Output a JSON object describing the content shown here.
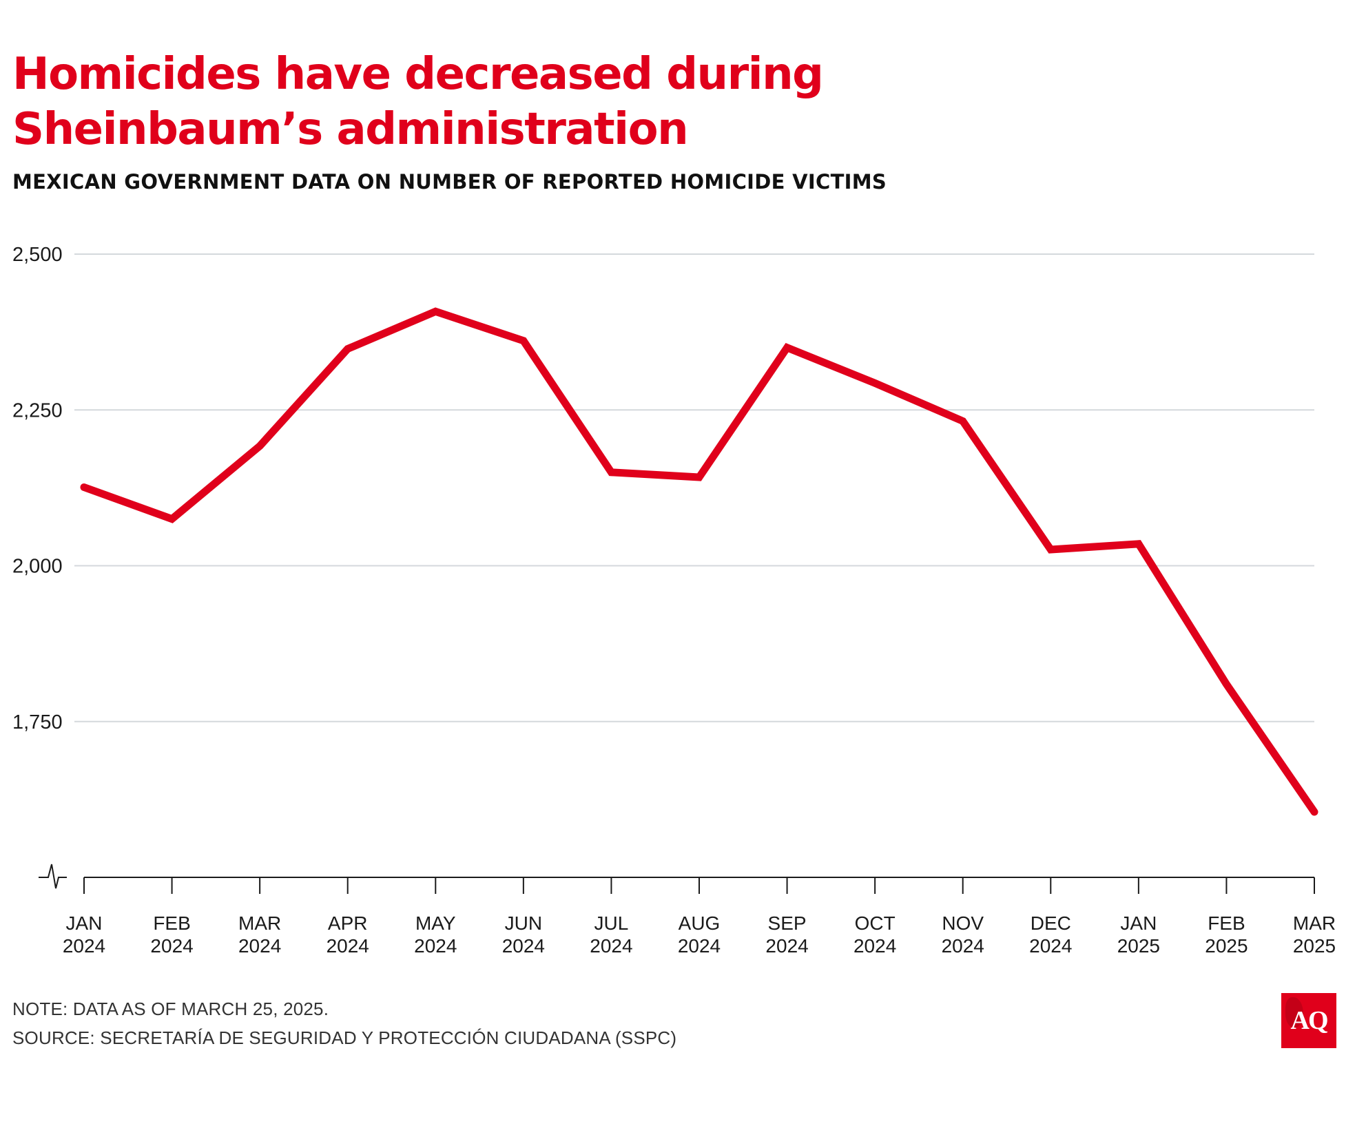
{
  "header": {
    "title_line1": "Homicides have decreased during",
    "title_line2": "Sheinbaum’s administration",
    "subtitle": "MEXICAN GOVERNMENT DATA ON NUMBER OF REPORTED HOMICIDE VICTIMS"
  },
  "footer": {
    "note": "NOTE: DATA AS OF MARCH 25, 2025.",
    "source": "SOURCE: SECRETARÍA DE SEGURIDAD Y PROTECCIÓN CIUDADANA (SSPC)"
  },
  "logo": {
    "text": "AQ"
  },
  "colors": {
    "title": "#e0001b",
    "line": "#e0001b",
    "grid": "#d4d8dc",
    "axis": "#1a1a1a",
    "logo_bg": "#e0001b"
  },
  "chart_data": {
    "type": "line",
    "title": "Homicides have decreased during Sheinbaum’s administration",
    "subtitle": "MEXICAN GOVERNMENT DATA ON NUMBER OF REPORTED HOMICIDE VICTIMS",
    "xlabel": "",
    "ylabel": "",
    "categories": [
      [
        "JAN",
        "2024"
      ],
      [
        "FEB",
        "2024"
      ],
      [
        "MAR",
        "2024"
      ],
      [
        "APR",
        "2024"
      ],
      [
        "MAY",
        "2024"
      ],
      [
        "JUN",
        "2024"
      ],
      [
        "JUL",
        "2024"
      ],
      [
        "AUG",
        "2024"
      ],
      [
        "SEP",
        "2024"
      ],
      [
        "OCT",
        "2024"
      ],
      [
        "NOV",
        "2024"
      ],
      [
        "DEC",
        "2024"
      ],
      [
        "JAN",
        "2025"
      ],
      [
        "FEB",
        "2025"
      ],
      [
        "MAR",
        "2025"
      ]
    ],
    "series": [
      {
        "values": [
          2126,
          2075,
          2192,
          2348,
          2408,
          2361,
          2150,
          2142,
          2350,
          2293,
          2232,
          2026,
          2035,
          1810,
          1605
        ]
      }
    ],
    "yticks": [
      1750,
      2000,
      2250,
      2500
    ],
    "ytick_labels": [
      "1,750",
      "2,000",
      "2,250",
      "2,500"
    ],
    "ylim": [
      1500,
      2500
    ],
    "y_axis_break": true,
    "grid": true,
    "legend": "none"
  }
}
